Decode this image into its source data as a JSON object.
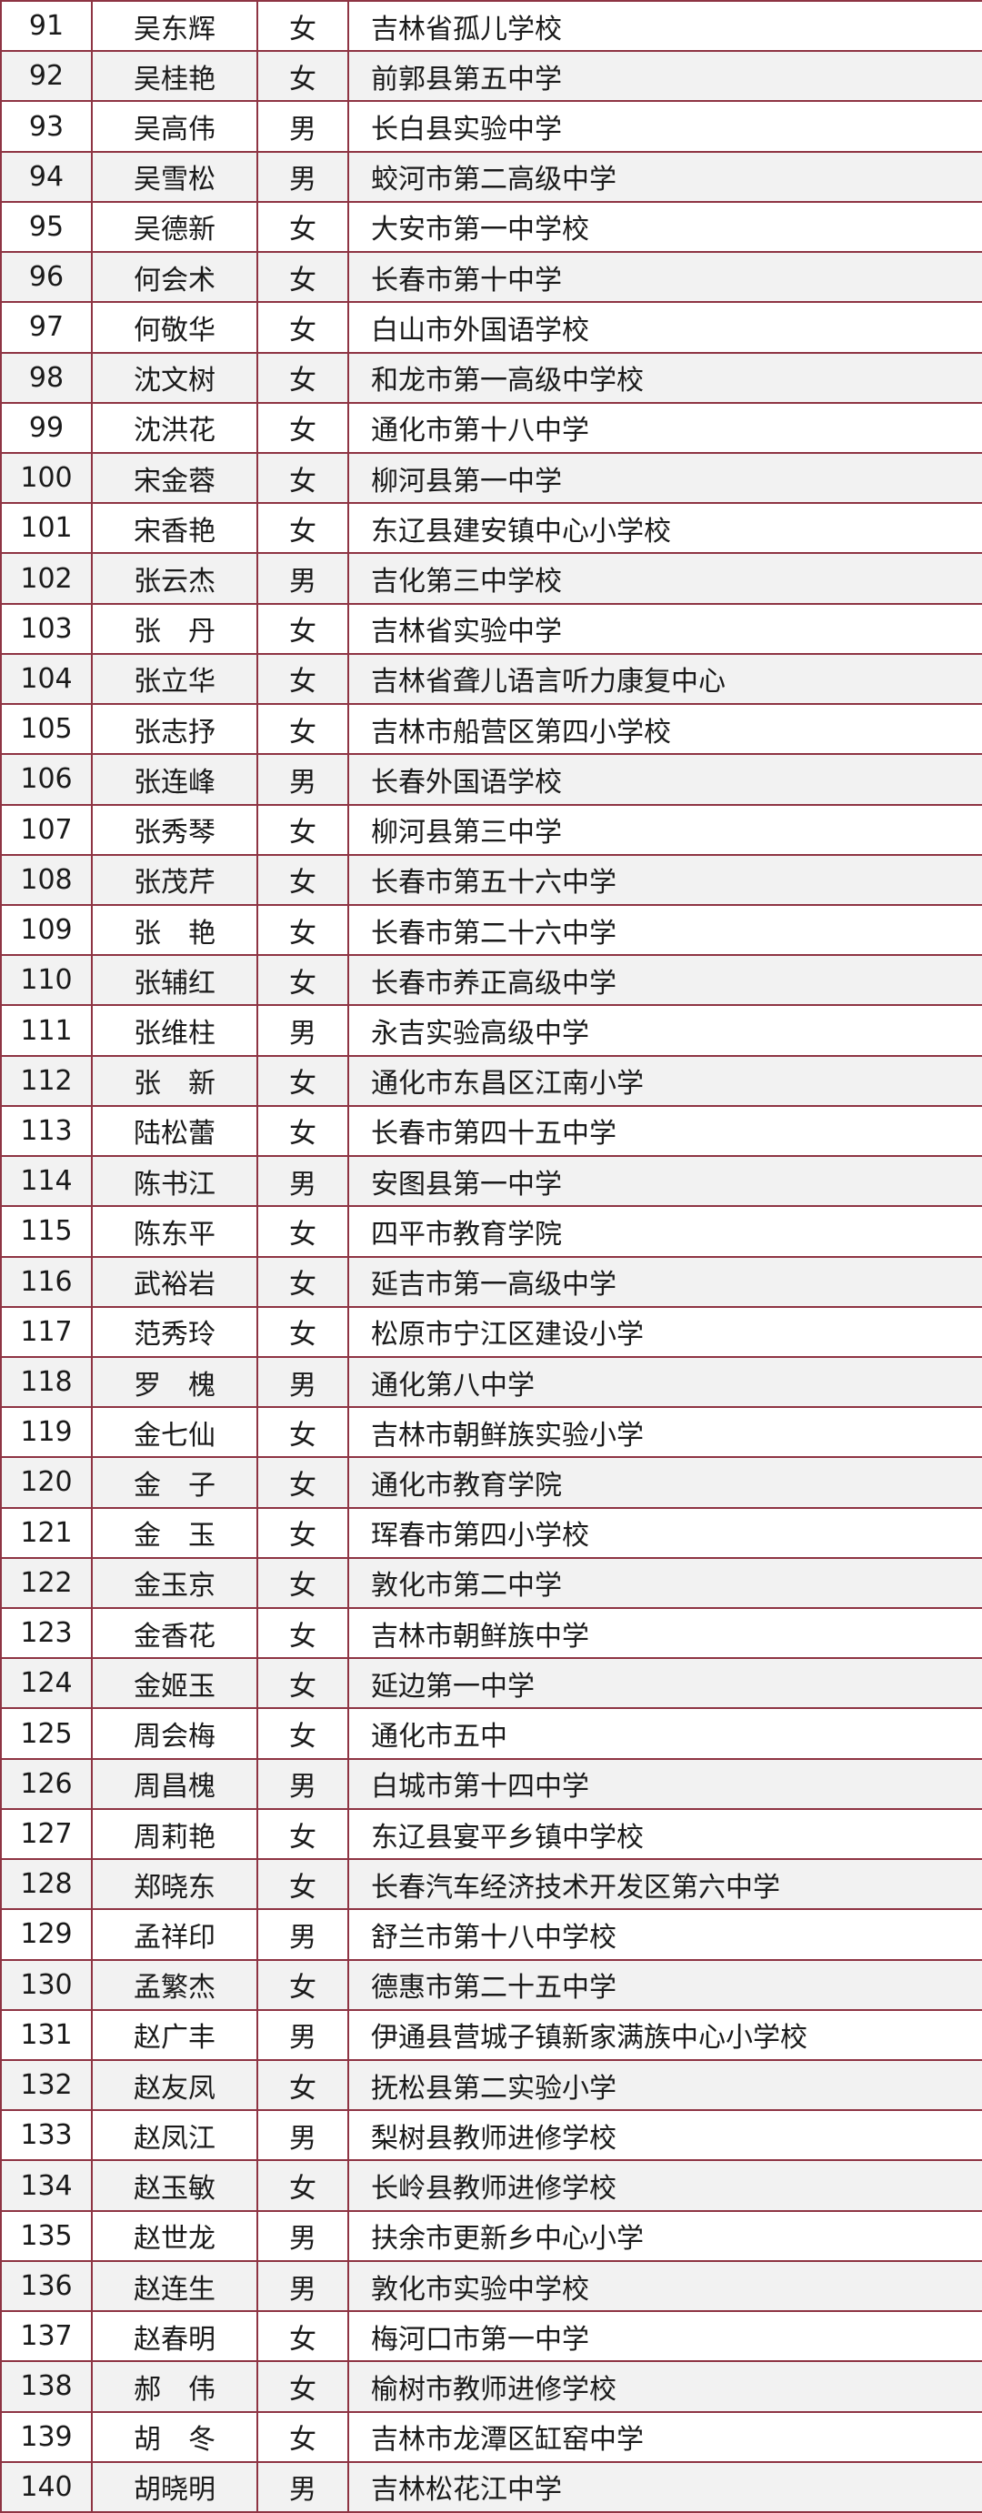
{
  "table": {
    "rows": [
      [
        91,
        "吴东辉",
        "女",
        "吉林省孤儿学校"
      ],
      [
        92,
        "吴桂艳",
        "女",
        "前郭县第五中学"
      ],
      [
        93,
        "吴高伟",
        "男",
        "长白县实验中学"
      ],
      [
        94,
        "吴雪松",
        "男",
        "蛟河市第二高级中学"
      ],
      [
        95,
        "吴德新",
        "女",
        "大安市第一中学校"
      ],
      [
        96,
        "何会术",
        "女",
        "长春市第十中学"
      ],
      [
        97,
        "何敬华",
        "女",
        "白山市外国语学校"
      ],
      [
        98,
        "沈文树",
        "女",
        "和龙市第一高级中学校"
      ],
      [
        99,
        "沈洪花",
        "女",
        "通化市第十八中学"
      ],
      [
        100,
        "宋金蓉",
        "女",
        "柳河县第一中学"
      ],
      [
        101,
        "宋香艳",
        "女",
        "东辽县建安镇中心小学校"
      ],
      [
        102,
        "张云杰",
        "男",
        "吉化第三中学校"
      ],
      [
        103,
        "张　丹",
        "女",
        "吉林省实验中学"
      ],
      [
        104,
        "张立华",
        "女",
        "吉林省聋儿语言听力康复中心"
      ],
      [
        105,
        "张志抒",
        "女",
        "吉林市船营区第四小学校"
      ],
      [
        106,
        "张连峰",
        "男",
        "长春外国语学校"
      ],
      [
        107,
        "张秀琴",
        "女",
        "柳河县第三中学"
      ],
      [
        108,
        "张茂芹",
        "女",
        "长春市第五十六中学"
      ],
      [
        109,
        "张　艳",
        "女",
        "长春市第二十六中学"
      ],
      [
        110,
        "张辅红",
        "女",
        "长春市养正高级中学"
      ],
      [
        111,
        "张维柱",
        "男",
        "永吉实验高级中学"
      ],
      [
        112,
        "张　新",
        "女",
        "通化市东昌区江南小学"
      ],
      [
        113,
        "陆松蕾",
        "女",
        "长春市第四十五中学"
      ],
      [
        114,
        "陈书江",
        "男",
        "安图县第一中学"
      ],
      [
        115,
        "陈东平",
        "女",
        "四平市教育学院"
      ],
      [
        116,
        "武裕岩",
        "女",
        "延吉市第一高级中学"
      ],
      [
        117,
        "范秀玲",
        "女",
        "松原市宁江区建设小学"
      ],
      [
        118,
        "罗　槐",
        "男",
        "通化第八中学"
      ],
      [
        119,
        "金七仙",
        "女",
        "吉林市朝鲜族实验小学"
      ],
      [
        120,
        "金　子",
        "女",
        "通化市教育学院"
      ],
      [
        121,
        "金　玉",
        "女",
        "珲春市第四小学校"
      ],
      [
        122,
        "金玉京",
        "女",
        "敦化市第二中学"
      ],
      [
        123,
        "金香花",
        "女",
        "吉林市朝鲜族中学"
      ],
      [
        124,
        "金姬玉",
        "女",
        "延边第一中学"
      ],
      [
        125,
        "周会梅",
        "女",
        "通化市五中"
      ],
      [
        126,
        "周昌槐",
        "男",
        "白城市第十四中学"
      ],
      [
        127,
        "周莉艳",
        "女",
        "东辽县宴平乡镇中学校"
      ],
      [
        128,
        "郑晓东",
        "女",
        "长春汽车经济技术开发区第六中学"
      ],
      [
        129,
        "孟祥印",
        "男",
        "舒兰市第十八中学校"
      ],
      [
        130,
        "孟繁杰",
        "女",
        "德惠市第二十五中学"
      ],
      [
        131,
        "赵广丰",
        "男",
        "伊通县营城子镇新家满族中心小学校"
      ],
      [
        132,
        "赵友凤",
        "女",
        "抚松县第二实验小学"
      ],
      [
        133,
        "赵凤江",
        "男",
        "梨树县教师进修学校"
      ],
      [
        134,
        "赵玉敏",
        "女",
        "长岭县教师进修学校"
      ],
      [
        135,
        "赵世龙",
        "男",
        "扶余市更新乡中心小学"
      ],
      [
        136,
        "赵连生",
        "男",
        "敦化市实验中学校"
      ],
      [
        137,
        "赵春明",
        "女",
        "梅河口市第一中学"
      ],
      [
        138,
        "郝　伟",
        "女",
        "榆树市教师进修学校"
      ],
      [
        139,
        "胡　冬",
        "女",
        "吉林市龙潭区缸窑中学"
      ],
      [
        140,
        "胡晓明",
        "男",
        "吉林松花江中学"
      ]
    ]
  }
}
